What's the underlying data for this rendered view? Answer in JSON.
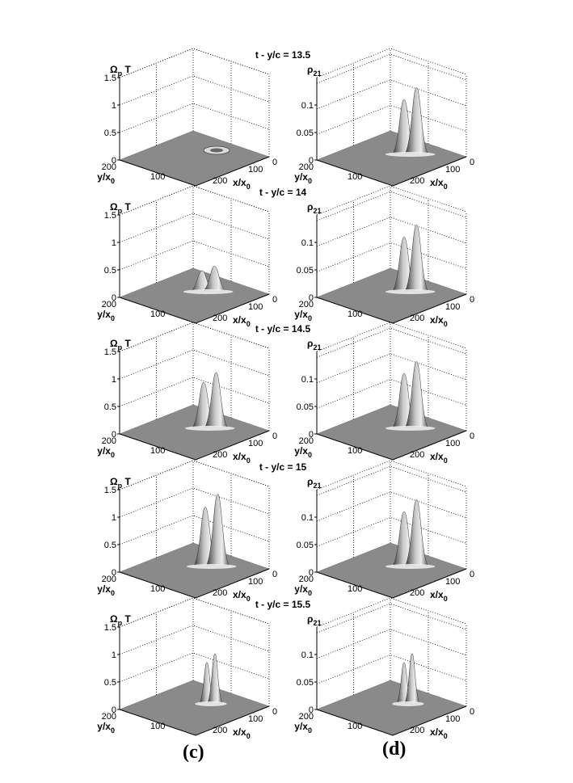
{
  "figure": {
    "panel_labels": {
      "left": "(c)",
      "right": "(d)"
    }
  },
  "chart_data": {
    "type": "surface3d",
    "x_axis": {
      "label": "x/x",
      "sub": "0",
      "ticks": [
        "0",
        "100",
        "200"
      ]
    },
    "y_axis": {
      "label": "y/x",
      "sub": "0",
      "ticks": [
        "200",
        "100"
      ]
    },
    "left_column": {
      "zlabel_main": "Ω",
      "zlabel_sub": "p",
      "zlabel_suffix": " T",
      "zlim": [
        0,
        1.5
      ],
      "zticks": [
        "0",
        "0.5",
        "1",
        "1.5"
      ]
    },
    "right_column": {
      "zlabel_main": "ρ",
      "zlabel_sub": "21",
      "zlim": [
        0,
        0.15
      ],
      "zticks": [
        "0",
        "0.05",
        "0.1"
      ]
    },
    "rows": [
      {
        "title": "t - y/c = 13.5",
        "omega_peak": 0.05,
        "rho_peak": 0.12
      },
      {
        "title": "t - y/c = 14",
        "omega_peak": 0.45,
        "rho_peak": 0.12
      },
      {
        "title": "t - y/c = 14.5",
        "omega_peak": 1.0,
        "rho_peak": 0.12
      },
      {
        "title": "t - y/c = 15",
        "omega_peak": 1.3,
        "rho_peak": 0.12
      },
      {
        "title": "t - y/c = 15.5",
        "omega_peak": 0.9,
        "rho_peak": 0.09
      }
    ]
  }
}
